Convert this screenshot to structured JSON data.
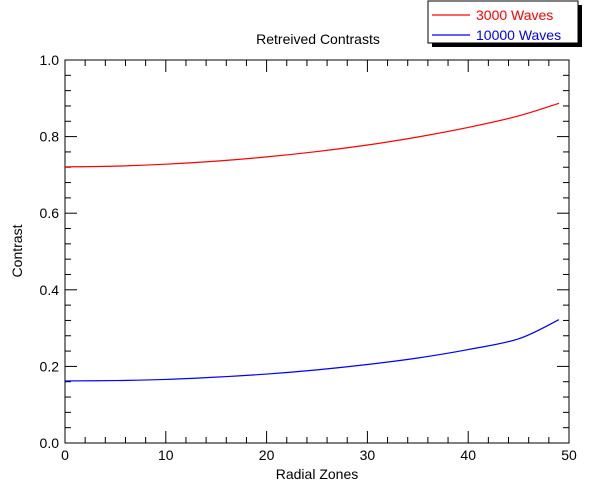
{
  "chart_data": {
    "type": "line",
    "title": "Retreived Contrasts",
    "xlabel": "Radial Zones",
    "ylabel": "Contrast",
    "xlim": [
      0,
      50
    ],
    "ylim": [
      0.0,
      1.0
    ],
    "x_ticks": [
      "0",
      "10",
      "20",
      "30",
      "40",
      "50"
    ],
    "y_ticks": [
      "0.0",
      "0.2",
      "0.4",
      "0.6",
      "0.8",
      "1.0"
    ],
    "grid": false,
    "legend_position": "top-right, outside plot",
    "x": [
      0,
      5,
      10,
      15,
      20,
      25,
      30,
      35,
      40,
      45,
      49
    ],
    "series": [
      {
        "name": "3000 Waves",
        "color": "#ff0000",
        "values": [
          0.721,
          0.723,
          0.728,
          0.736,
          0.747,
          0.761,
          0.778,
          0.799,
          0.824,
          0.854,
          0.887
        ]
      },
      {
        "name": "10000 Waves",
        "color": "#0000ff",
        "values": [
          0.162,
          0.163,
          0.166,
          0.172,
          0.18,
          0.191,
          0.205,
          0.222,
          0.244,
          0.272,
          0.322
        ]
      }
    ]
  }
}
